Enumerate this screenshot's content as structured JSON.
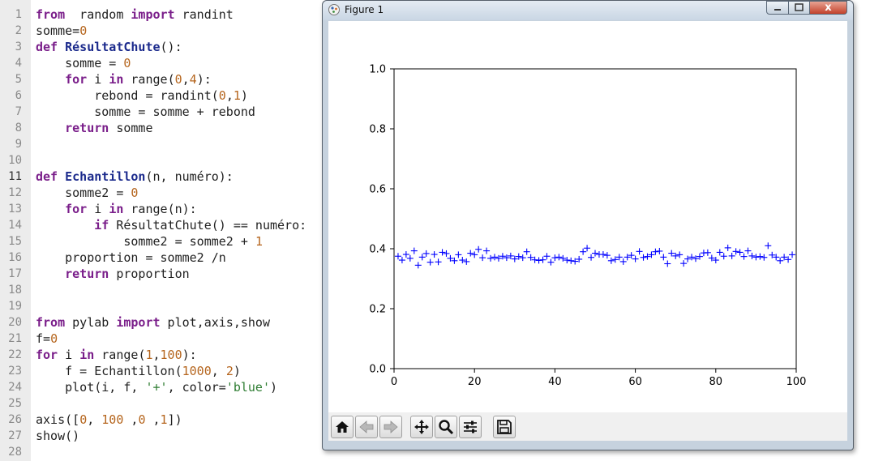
{
  "editor": {
    "lines": [
      {
        "n": "1",
        "t": [
          [
            "kw",
            "from"
          ],
          [
            "",
            "  random "
          ],
          [
            "kw",
            "import"
          ],
          [
            "",
            " randint"
          ]
        ]
      },
      {
        "n": "2",
        "t": [
          [
            "",
            "somme="
          ],
          [
            "num",
            "0"
          ]
        ]
      },
      {
        "n": "3",
        "t": [
          [
            "kw",
            "def"
          ],
          [
            "",
            " "
          ],
          [
            "def",
            "RésultatChute"
          ],
          [
            "",
            "():"
          ]
        ]
      },
      {
        "n": "4",
        "t": [
          [
            "",
            "    somme = "
          ],
          [
            "num",
            "0"
          ]
        ]
      },
      {
        "n": "5",
        "t": [
          [
            "",
            "    "
          ],
          [
            "kw",
            "for"
          ],
          [
            "",
            " i "
          ],
          [
            "kw",
            "in"
          ],
          [
            "",
            " "
          ],
          [
            "bi",
            "range"
          ],
          [
            "",
            "("
          ],
          [
            "num",
            "0"
          ],
          [
            "",
            ","
          ],
          [
            "num",
            "4"
          ],
          [
            "",
            "):"
          ]
        ]
      },
      {
        "n": "6",
        "t": [
          [
            "",
            "        rebond = randint("
          ],
          [
            "num",
            "0"
          ],
          [
            "",
            ","
          ],
          [
            "num",
            "1"
          ],
          [
            "",
            ")"
          ]
        ]
      },
      {
        "n": "7",
        "t": [
          [
            "",
            "        somme = somme + rebond"
          ]
        ]
      },
      {
        "n": "8",
        "t": [
          [
            "",
            "    "
          ],
          [
            "kw",
            "return"
          ],
          [
            "",
            " somme"
          ]
        ]
      },
      {
        "n": "9",
        "t": []
      },
      {
        "n": "10",
        "t": []
      },
      {
        "n": "11",
        "t": [
          [
            "kw",
            "def"
          ],
          [
            "",
            " "
          ],
          [
            "def",
            "Echantillon"
          ],
          [
            "",
            "(n, numéro):"
          ]
        ]
      },
      {
        "n": "12",
        "t": [
          [
            "",
            "    somme2 = "
          ],
          [
            "num",
            "0"
          ]
        ]
      },
      {
        "n": "13",
        "t": [
          [
            "",
            "    "
          ],
          [
            "kw",
            "for"
          ],
          [
            "",
            " i "
          ],
          [
            "kw",
            "in"
          ],
          [
            "",
            " "
          ],
          [
            "bi",
            "range"
          ],
          [
            "",
            "(n):"
          ]
        ]
      },
      {
        "n": "14",
        "t": [
          [
            "",
            "        "
          ],
          [
            "kw",
            "if"
          ],
          [
            "",
            " RésultatChute() == numéro:"
          ]
        ]
      },
      {
        "n": "15",
        "t": [
          [
            "",
            "            somme2 = somme2 + "
          ],
          [
            "num",
            "1"
          ]
        ]
      },
      {
        "n": "16",
        "t": [
          [
            "",
            "    proportion = somme2 /n"
          ]
        ]
      },
      {
        "n": "17",
        "t": [
          [
            "",
            "    "
          ],
          [
            "kw",
            "return"
          ],
          [
            "",
            " proportion"
          ]
        ]
      },
      {
        "n": "18",
        "t": []
      },
      {
        "n": "19",
        "t": []
      },
      {
        "n": "20",
        "t": [
          [
            "kw",
            "from"
          ],
          [
            "",
            " pylab "
          ],
          [
            "kw",
            "import"
          ],
          [
            "",
            " plot,axis,show"
          ]
        ]
      },
      {
        "n": "21",
        "t": [
          [
            "",
            "f="
          ],
          [
            "num",
            "0"
          ]
        ]
      },
      {
        "n": "22",
        "t": [
          [
            "kw",
            "for"
          ],
          [
            "",
            " i "
          ],
          [
            "kw",
            "in"
          ],
          [
            "",
            " "
          ],
          [
            "bi",
            "range"
          ],
          [
            "",
            "("
          ],
          [
            "num",
            "1"
          ],
          [
            "",
            ","
          ],
          [
            "num",
            "100"
          ],
          [
            "",
            "):"
          ]
        ]
      },
      {
        "n": "23",
        "t": [
          [
            "",
            "    f = Echantillon("
          ],
          [
            "num",
            "1000"
          ],
          [
            "",
            ", "
          ],
          [
            "num",
            "2"
          ],
          [
            "",
            ")"
          ]
        ]
      },
      {
        "n": "24",
        "t": [
          [
            "",
            "    plot(i, f, "
          ],
          [
            "str",
            "'+'"
          ],
          [
            "",
            ", color="
          ],
          [
            "str",
            "'blue'"
          ],
          [
            "",
            ")"
          ]
        ]
      },
      {
        "n": "25",
        "t": []
      },
      {
        "n": "26",
        "t": [
          [
            "",
            "axis(["
          ],
          [
            "num",
            "0"
          ],
          [
            "",
            ", "
          ],
          [
            "num",
            "100"
          ],
          [
            "",
            " ,"
          ],
          [
            "num",
            "0"
          ],
          [
            "",
            " ,"
          ],
          [
            "num",
            "1"
          ],
          [
            "",
            "])"
          ]
        ]
      },
      {
        "n": "27",
        "t": [
          [
            "",
            "show()"
          ]
        ]
      },
      {
        "n": "28",
        "t": []
      }
    ]
  },
  "figure": {
    "title": "Figure 1",
    "close_label": "x",
    "toolbar": [
      "home-icon",
      "back-icon",
      "forward-icon",
      "pan-icon",
      "zoom-icon",
      "configure-subplots-icon",
      "save-icon"
    ]
  },
  "chart_data": {
    "type": "scatter",
    "marker": "+",
    "color": "#0000ff",
    "xlim": [
      0,
      100
    ],
    "ylim": [
      0,
      1
    ],
    "xticks": [
      "0",
      "20",
      "40",
      "60",
      "80",
      "100"
    ],
    "yticks": [
      "0.0",
      "0.2",
      "0.4",
      "0.6",
      "0.8",
      "1.0"
    ],
    "grid": false,
    "x": [
      1,
      2,
      3,
      4,
      5,
      6,
      7,
      8,
      9,
      10,
      11,
      12,
      13,
      14,
      15,
      16,
      17,
      18,
      19,
      20,
      21,
      22,
      23,
      24,
      25,
      26,
      27,
      28,
      29,
      30,
      31,
      32,
      33,
      34,
      35,
      36,
      37,
      38,
      39,
      40,
      41,
      42,
      43,
      44,
      45,
      46,
      47,
      48,
      49,
      50,
      51,
      52,
      53,
      54,
      55,
      56,
      57,
      58,
      59,
      60,
      61,
      62,
      63,
      64,
      65,
      66,
      67,
      68,
      69,
      70,
      71,
      72,
      73,
      74,
      75,
      76,
      77,
      78,
      79,
      80,
      81,
      82,
      83,
      84,
      85,
      86,
      87,
      88,
      89,
      90,
      91,
      92,
      93,
      94,
      95,
      96,
      97,
      98,
      99
    ],
    "y": [
      0.375,
      0.362,
      0.381,
      0.368,
      0.393,
      0.345,
      0.372,
      0.384,
      0.355,
      0.381,
      0.356,
      0.388,
      0.384,
      0.368,
      0.36,
      0.38,
      0.362,
      0.357,
      0.385,
      0.38,
      0.398,
      0.37,
      0.393,
      0.368,
      0.372,
      0.368,
      0.375,
      0.37,
      0.376,
      0.366,
      0.374,
      0.37,
      0.39,
      0.371,
      0.363,
      0.361,
      0.363,
      0.375,
      0.355,
      0.37,
      0.372,
      0.368,
      0.362,
      0.36,
      0.358,
      0.365,
      0.39,
      0.402,
      0.371,
      0.385,
      0.381,
      0.381,
      0.378,
      0.36,
      0.364,
      0.372,
      0.357,
      0.372,
      0.378,
      0.366,
      0.391,
      0.371,
      0.374,
      0.38,
      0.39,
      0.392,
      0.372,
      0.35,
      0.385,
      0.376,
      0.38,
      0.351,
      0.366,
      0.372,
      0.367,
      0.374,
      0.386,
      0.387,
      0.369,
      0.362,
      0.388,
      0.375,
      0.403,
      0.376,
      0.391,
      0.388,
      0.374,
      0.393,
      0.376,
      0.372,
      0.374,
      0.371,
      0.41,
      0.379,
      0.372,
      0.36,
      0.372,
      0.364,
      0.38
    ]
  }
}
